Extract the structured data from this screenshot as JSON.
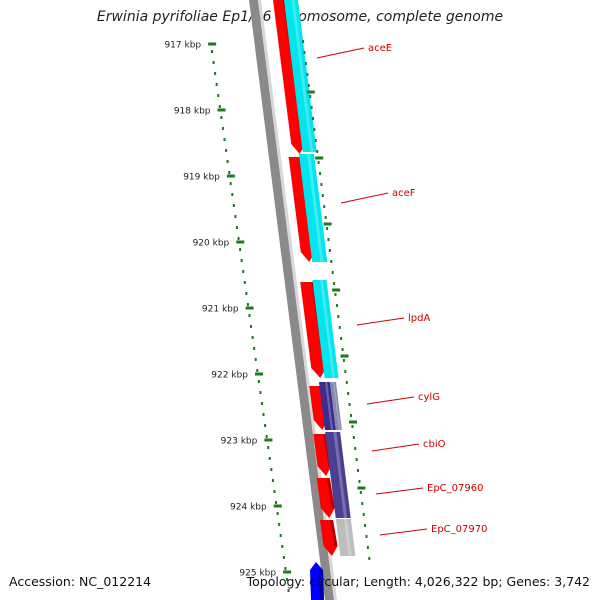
{
  "title": "Erwinia pyrifoliae Ep1/96 chromosome, complete genome",
  "footer": {
    "accession": "Accession: NC_012214",
    "summary": "Topology: circular; Length: 4,026,322 bp; Genes: 3,742"
  },
  "ticks": [
    "917 kbp",
    "918 kbp",
    "919 kbp",
    "920 kbp",
    "921 kbp",
    "922 kbp",
    "923 kbp",
    "924 kbp",
    "925 kbp"
  ],
  "genes": [
    {
      "name": "aceE",
      "label_color": "#cc0000"
    },
    {
      "name": "aceF",
      "label_color": "#cc0000"
    },
    {
      "name": "lpdA",
      "label_color": "#cc0000"
    },
    {
      "name": "cylG",
      "label_color": "#cc0000"
    },
    {
      "name": "cbiO",
      "label_color": "#cc0000"
    },
    {
      "name": "EpC_07960",
      "label_color": "#cc0000"
    },
    {
      "name": "EpC_07970",
      "label_color": "#cc0000"
    }
  ],
  "colors": {
    "cds": "#ff0000",
    "cds_dark": "#bb0000",
    "cog_cyan": "#00e5ee",
    "cog_navy": "#3a2e8c",
    "cog_purple": "#4b3f91",
    "cog_gray": "#bdbdbd",
    "backbone": "#8a8a8a",
    "tick": "#1f7a1f",
    "reverse_cds": "#0000ff"
  }
}
